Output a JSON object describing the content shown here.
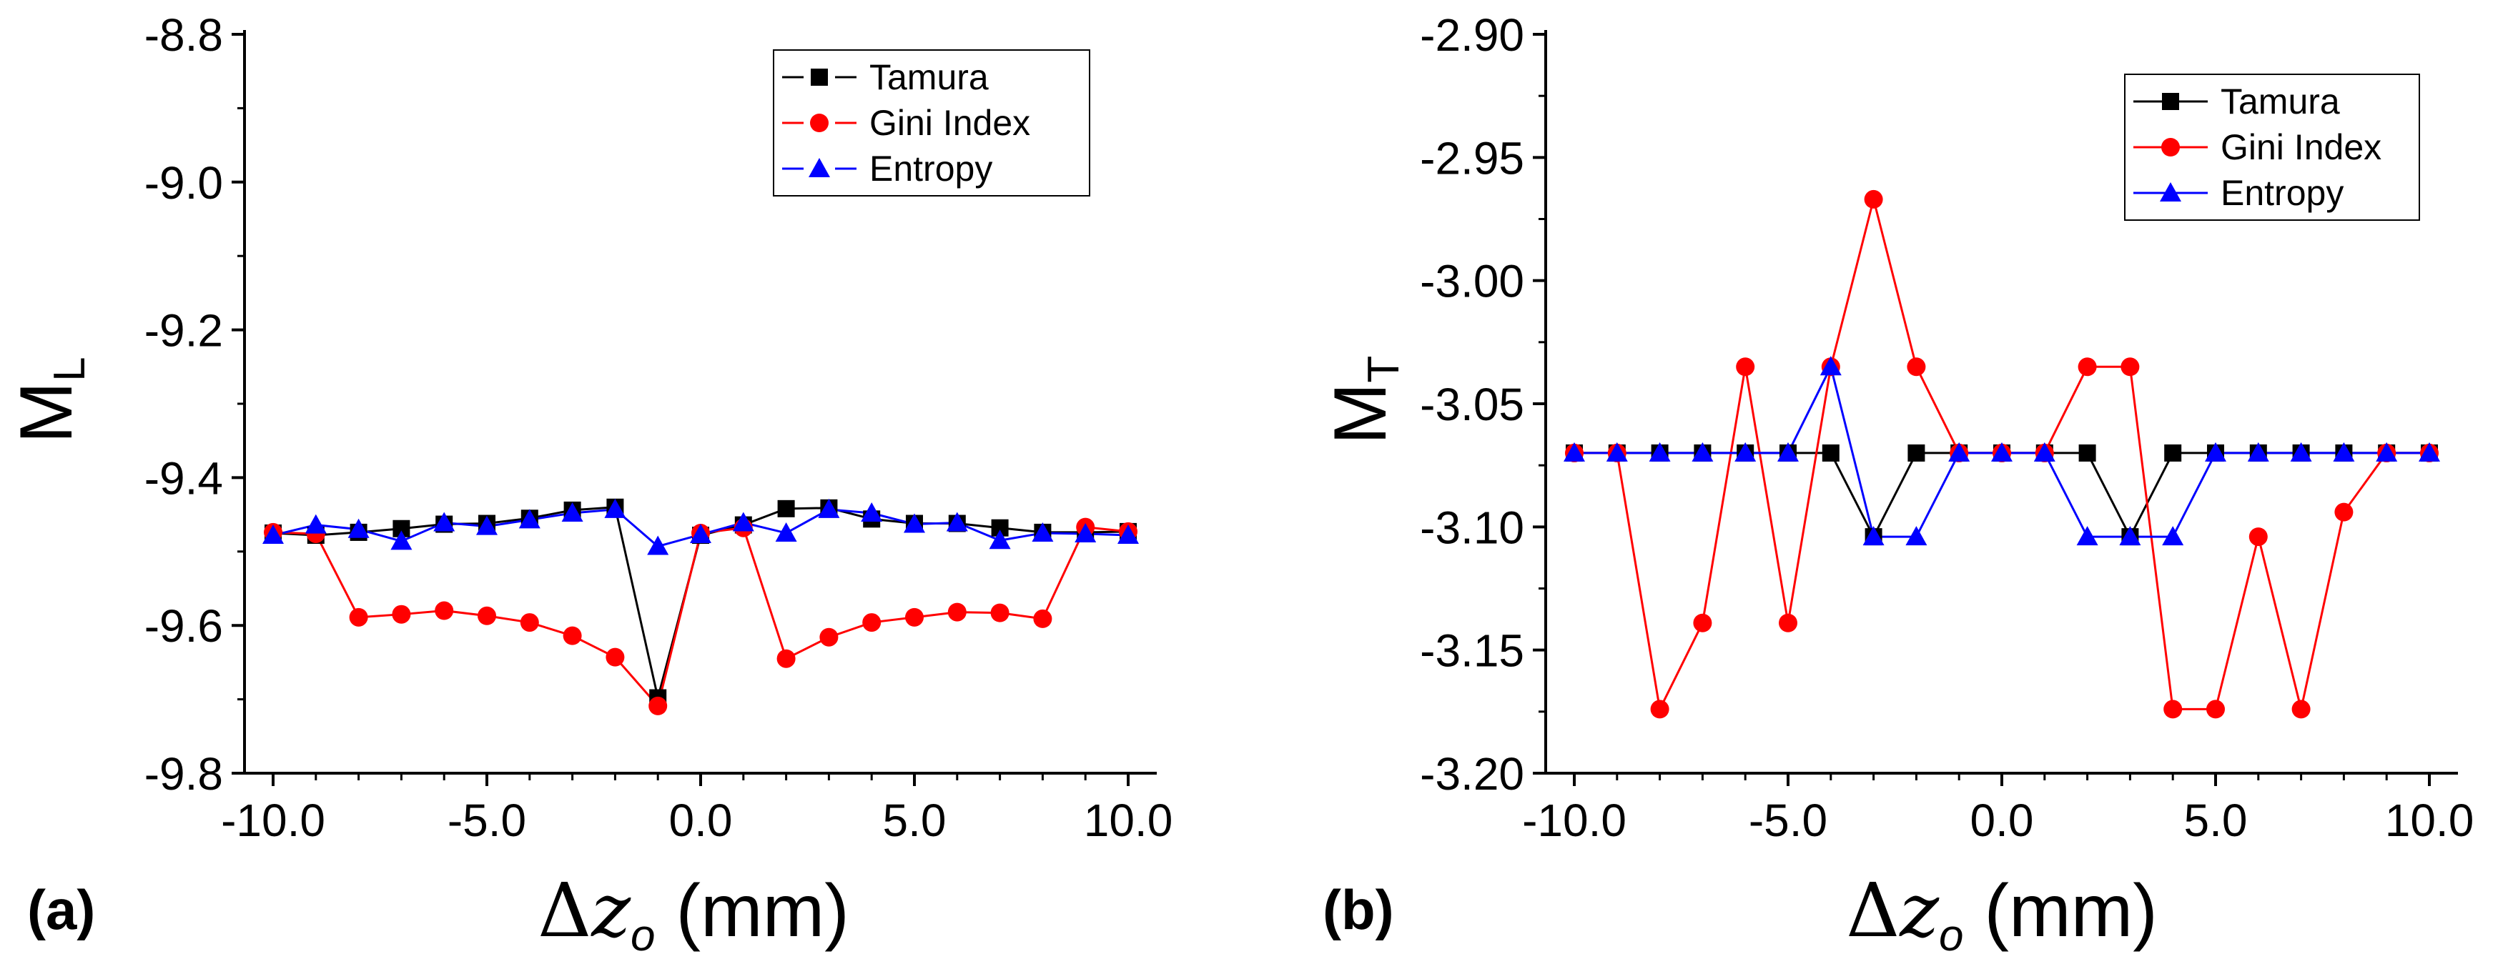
{
  "chart_data": [
    {
      "type": "line",
      "panel_label": "(a)",
      "ylabel": {
        "main": "M",
        "sub": "L"
      },
      "xlabel": {
        "delta": "Δ",
        "var": "z",
        "sub": "o",
        "unit": "(mm)"
      },
      "xlim": [
        -10,
        10
      ],
      "ylim": [
        -9.8,
        -8.8
      ],
      "xticks": [
        -10,
        -5,
        0,
        5,
        10
      ],
      "xtick_labels": [
        "-10.0",
        "-5.0",
        "0.0",
        "5.0",
        "10.0"
      ],
      "yticks": [
        -9.8,
        -9.6,
        -9.4,
        -9.2,
        -9.0,
        -8.8
      ],
      "ytick_labels": [
        "-9.8",
        "-9.6",
        "-9.4",
        "-9.2",
        "-9.0",
        "-8.8"
      ],
      "legend_position": "top-right",
      "x": [
        -10,
        -9,
        -8,
        -7,
        -6,
        -5,
        -4,
        -3,
        -2,
        -1,
        0,
        1,
        2,
        3,
        4,
        5,
        6,
        7,
        8,
        9,
        10
      ],
      "series": [
        {
          "name": "Tamura",
          "color": "#000000",
          "marker": "square",
          "legend_dashed": true,
          "values": [
            -9.475,
            -9.478,
            -9.474,
            -9.469,
            -9.463,
            -9.462,
            -9.455,
            -9.444,
            -9.44,
            -9.698,
            -9.478,
            -9.464,
            -9.442,
            -9.441,
            -9.456,
            -9.462,
            -9.462,
            -9.468,
            -9.474,
            -9.474,
            -9.473
          ]
        },
        {
          "name": "Gini Index",
          "color": "#ff0000",
          "marker": "circle",
          "legend_dashed": true,
          "values": [
            -9.474,
            -9.476,
            -9.589,
            -9.585,
            -9.58,
            -9.587,
            -9.596,
            -9.614,
            -9.643,
            -9.709,
            -9.475,
            -9.468,
            -9.645,
            -9.616,
            -9.596,
            -9.589,
            -9.582,
            -9.583,
            -9.591,
            -9.467,
            -9.473
          ]
        },
        {
          "name": "Entropy",
          "color": "#0000ff",
          "marker": "triangle",
          "legend_dashed": true,
          "values": [
            -9.478,
            -9.464,
            -9.47,
            -9.486,
            -9.461,
            -9.466,
            -9.457,
            -9.448,
            -9.443,
            -9.493,
            -9.477,
            -9.461,
            -9.475,
            -9.443,
            -9.448,
            -9.463,
            -9.461,
            -9.485,
            -9.475,
            -9.476,
            -9.478
          ]
        }
      ]
    },
    {
      "type": "line",
      "panel_label": "(b)",
      "ylabel": {
        "main": "M",
        "sub": "T"
      },
      "xlabel": {
        "delta": "Δ",
        "var": "z",
        "sub": "o",
        "unit": "(mm)"
      },
      "xlim": [
        -10,
        10
      ],
      "ylim": [
        -3.2,
        -2.9
      ],
      "xticks": [
        -10,
        -5,
        0,
        5,
        10
      ],
      "xtick_labels": [
        "-10.0",
        "-5.0",
        "0.0",
        "5.0",
        "10.0"
      ],
      "yticks": [
        -3.2,
        -3.15,
        -3.1,
        -3.05,
        -3.0,
        -2.95,
        -2.9
      ],
      "ytick_labels": [
        "-3.20",
        "-3.15",
        "-3.10",
        "-3.05",
        "-3.00",
        "-2.95",
        "-2.90"
      ],
      "legend_position": "top-right",
      "x": [
        -10,
        -9,
        -8,
        -7,
        -6,
        -5,
        -4,
        -3,
        -2,
        -1,
        0,
        1,
        2,
        3,
        4,
        5,
        6,
        7,
        8,
        9,
        10
      ],
      "series": [
        {
          "name": "Tamura",
          "color": "#000000",
          "marker": "square",
          "legend_dashed": false,
          "values": [
            -3.07,
            -3.07,
            -3.07,
            -3.07,
            -3.07,
            -3.07,
            -3.07,
            -3.104,
            -3.07,
            -3.07,
            -3.07,
            -3.07,
            -3.07,
            -3.104,
            -3.07,
            -3.07,
            -3.07,
            -3.07,
            -3.07,
            -3.07,
            -3.07
          ]
        },
        {
          "name": "Gini Index",
          "color": "#ff0000",
          "marker": "circle",
          "legend_dashed": false,
          "values": [
            -3.07,
            -3.07,
            -3.174,
            -3.139,
            -3.035,
            -3.139,
            -3.035,
            -2.967,
            -3.035,
            -3.07,
            -3.07,
            -3.07,
            -3.035,
            -3.035,
            -3.174,
            -3.174,
            -3.104,
            -3.174,
            -3.094,
            -3.07,
            -3.07
          ]
        },
        {
          "name": "Entropy",
          "color": "#0000ff",
          "marker": "triangle",
          "legend_dashed": false,
          "values": [
            -3.07,
            -3.07,
            -3.07,
            -3.07,
            -3.07,
            -3.07,
            -3.035,
            -3.104,
            -3.104,
            -3.07,
            -3.07,
            -3.07,
            -3.104,
            -3.104,
            -3.104,
            -3.07,
            -3.07,
            -3.07,
            -3.07,
            -3.07,
            -3.07
          ]
        }
      ]
    }
  ]
}
